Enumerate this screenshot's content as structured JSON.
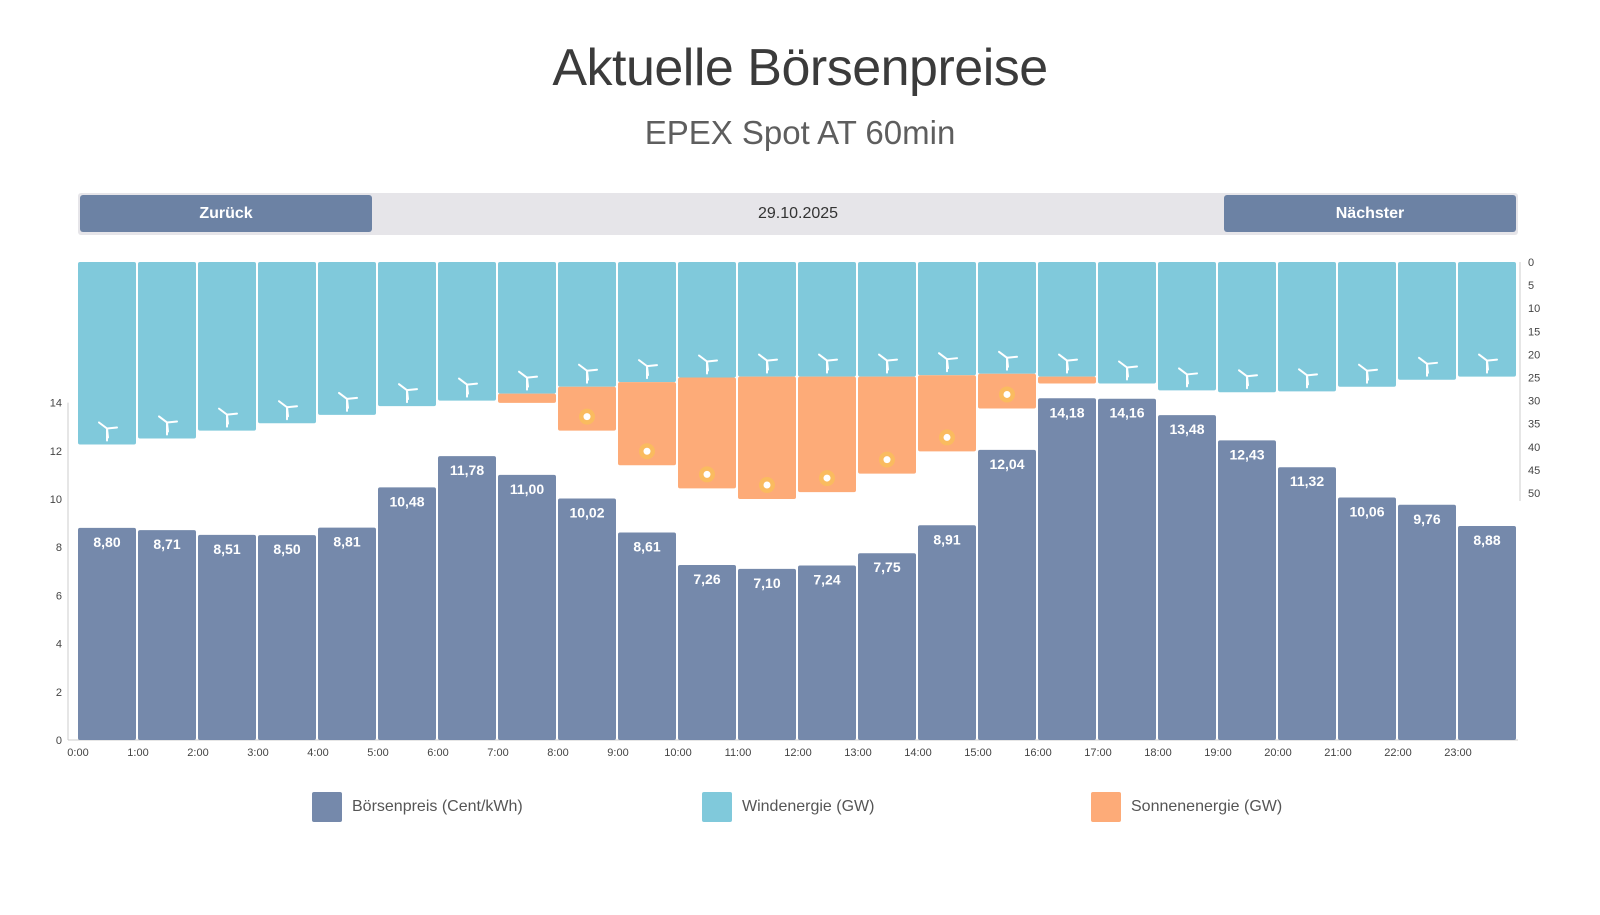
{
  "title": "Aktuelle Börsenpreise",
  "subtitle": "EPEX Spot AT 60min",
  "nav": {
    "prev_label": "Zurück",
    "date": "29.10.2025",
    "next_label": "Nächster"
  },
  "colors": {
    "price": "#7589ab",
    "wind": "#80c9db",
    "solar": "#fdab78",
    "sun_dot": "#f8c94a",
    "axis": "#cccccc"
  },
  "chart_data": {
    "type": "bar",
    "hours": [
      "0:00",
      "1:00",
      "2:00",
      "3:00",
      "4:00",
      "5:00",
      "6:00",
      "7:00",
      "8:00",
      "9:00",
      "10:00",
      "11:00",
      "12:00",
      "13:00",
      "14:00",
      "15:00",
      "16:00",
      "17:00",
      "18:00",
      "19:00",
      "20:00",
      "21:00",
      "22:00",
      "23:00"
    ],
    "series": [
      {
        "name": "Börsenpreis (Cent/kWh)",
        "values": [
          8.8,
          8.71,
          8.51,
          8.5,
          8.81,
          10.48,
          11.78,
          11.0,
          10.02,
          8.61,
          7.26,
          7.1,
          7.24,
          7.75,
          8.91,
          12.04,
          14.18,
          14.16,
          13.48,
          12.43,
          11.32,
          10.06,
          9.76,
          8.88
        ],
        "labels": [
          "8,80",
          "8,71",
          "8,51",
          "8,50",
          "8,81",
          "10,48",
          "11,78",
          "11,00",
          "10,02",
          "8,61",
          "7,26",
          "7,10",
          "7,24",
          "7,75",
          "8,91",
          "12,04",
          "14,18",
          "14,16",
          "13,48",
          "12,43",
          "11,32",
          "10,06",
          "9,76",
          "8,88"
        ]
      },
      {
        "name": "Windenergie (GW)",
        "values": [
          39.5,
          38.2,
          36.5,
          34.9,
          33.1,
          31.2,
          30,
          28.5,
          27,
          26,
          25,
          24.8,
          24.8,
          24.8,
          24.5,
          24.2,
          24.8,
          26.3,
          27.8,
          28.2,
          28.0,
          27.0,
          25.5,
          24.8
        ]
      },
      {
        "name": "Sonnenenergie (GW)",
        "values": [
          0,
          0,
          0,
          0,
          0,
          0,
          0,
          2,
          9.5,
          18,
          24,
          26.5,
          25,
          21,
          16.5,
          7.5,
          1.5,
          0,
          0,
          0,
          0,
          0,
          0,
          0
        ]
      }
    ],
    "price_axis": {
      "min": 0,
      "max": 14,
      "ticks": [
        0,
        2,
        4,
        6,
        8,
        10,
        12,
        14
      ]
    },
    "energy_axis": {
      "min": 0,
      "max": 50,
      "ticks": [
        0,
        5,
        10,
        15,
        20,
        25,
        30,
        35,
        40,
        45,
        50
      ]
    },
    "legend": [
      "Börsenpreis (Cent/kWh)",
      "Windenergie (GW)",
      "Sonnenenergie (GW)"
    ]
  }
}
